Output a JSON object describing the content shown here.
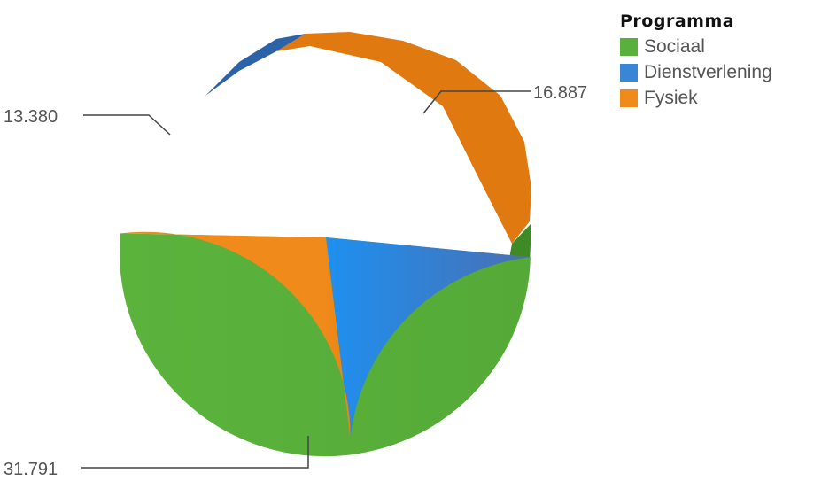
{
  "chart_data": {
    "type": "pie",
    "legend": {
      "title": "Programma",
      "position": "top-right"
    },
    "series": [
      {
        "name": "Sociaal",
        "value": 31791,
        "label": "31.791",
        "color": "#59b03a"
      },
      {
        "name": "Dienstverlening",
        "value": 13380,
        "label": "13.380",
        "color": "#3a86d6"
      },
      {
        "name": "Fysiek",
        "value": 16887,
        "label": "16.887",
        "color": "#f08a1a"
      }
    ]
  }
}
